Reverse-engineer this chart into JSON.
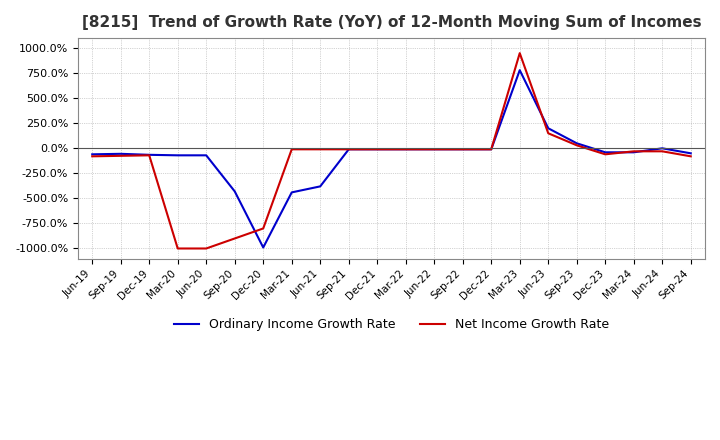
{
  "title": "[8215]  Trend of Growth Rate (YoY) of 12-Month Moving Sum of Incomes",
  "title_fontsize": 11,
  "ylim": [
    -1100,
    1100
  ],
  "yticks": [
    -1000,
    -750,
    -500,
    -250,
    0,
    250,
    500,
    750,
    1000
  ],
  "background_color": "#ffffff",
  "grid_color": "#aaaaaa",
  "legend_labels": [
    "Ordinary Income Growth Rate",
    "Net Income Growth Rate"
  ],
  "line_colors": [
    "#0000cc",
    "#cc0000"
  ],
  "x_labels": [
    "Jun-19",
    "Sep-19",
    "Dec-19",
    "Mar-20",
    "Jun-20",
    "Sep-20",
    "Dec-20",
    "Mar-21",
    "Jun-21",
    "Sep-21",
    "Dec-21",
    "Mar-22",
    "Jun-22",
    "Sep-22",
    "Dec-22",
    "Mar-23",
    "Jun-23",
    "Sep-23",
    "Dec-23",
    "Mar-24",
    "Jun-24",
    "Sep-24"
  ],
  "ordinary_income_growth": [
    -60,
    -55,
    -65,
    -70,
    -70,
    -430,
    -990,
    -440,
    -380,
    -10,
    -10,
    -10,
    -10,
    -10,
    -10,
    780,
    200,
    50,
    -40,
    -40,
    0,
    -50
  ],
  "net_income_growth": [
    -80,
    -75,
    -70,
    -1000,
    -1000,
    -900,
    -800,
    -10,
    -10,
    -10,
    -10,
    -10,
    -10,
    -10,
    -10,
    950,
    150,
    30,
    -60,
    -30,
    -30,
    -80
  ]
}
